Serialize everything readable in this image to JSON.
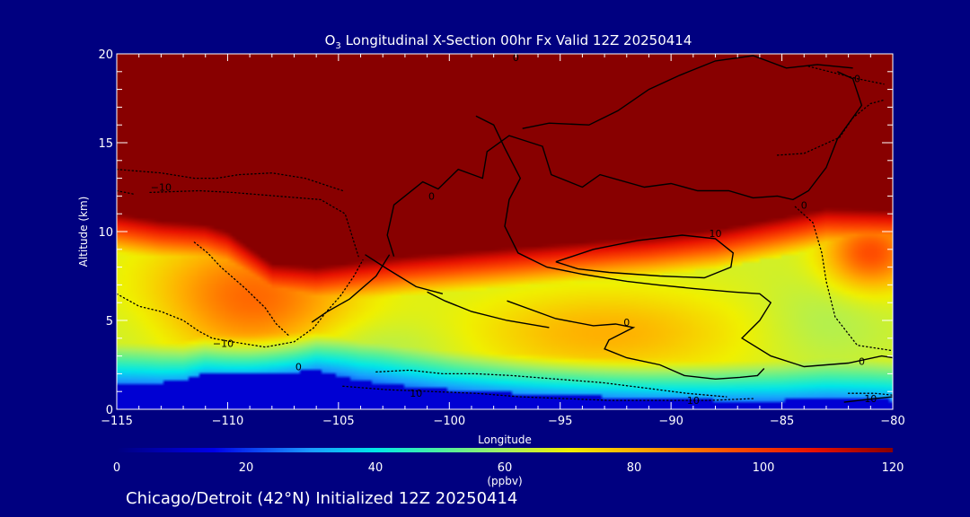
{
  "colors": {
    "background": "#000080",
    "foreground": "#ffffff",
    "contour": "#000000",
    "stratosphere": "#880000",
    "surface": "#0a16a8"
  },
  "chart_data": {
    "type": "heatmap",
    "title_main": "O",
    "title_sub": "3",
    "title_rest": " Longitudinal X-Section 00hr  Fx Valid 12Z 20250414",
    "xlabel": "Longitude",
    "ylabel": "Altitude (km)",
    "xlim": [
      -115,
      -80
    ],
    "ylim": [
      0,
      20
    ],
    "xticks": [
      {
        "v": -115,
        "label": "−115"
      },
      {
        "v": -110,
        "label": "−110"
      },
      {
        "v": -105,
        "label": "−105"
      },
      {
        "v": -100,
        "label": "−100"
      },
      {
        "v": -95,
        "label": "−95"
      },
      {
        "v": -90,
        "label": "−90"
      },
      {
        "v": -85,
        "label": "−85"
      },
      {
        "v": -80,
        "label": "−80"
      }
    ],
    "yticks": [
      {
        "v": 0,
        "label": "0"
      },
      {
        "v": 5,
        "label": "5"
      },
      {
        "v": 10,
        "label": "10"
      },
      {
        "v": 15,
        "label": "15"
      },
      {
        "v": 20,
        "label": "20"
      }
    ],
    "colorbar": {
      "unit": "(ppbv)",
      "range": [
        0,
        120
      ],
      "ticks": [
        {
          "v": 0,
          "label": "0"
        },
        {
          "v": 20,
          "label": "20"
        },
        {
          "v": 40,
          "label": "40"
        },
        {
          "v": 60,
          "label": "60"
        },
        {
          "v": 80,
          "label": "80"
        },
        {
          "v": 100,
          "label": "100"
        },
        {
          "v": 120,
          "label": "120"
        }
      ],
      "stops": [
        {
          "v": 0,
          "color": "#000080"
        },
        {
          "v": 15,
          "color": "#0000e8"
        },
        {
          "v": 30,
          "color": "#1a9cff"
        },
        {
          "v": 40,
          "color": "#00e8e8"
        },
        {
          "v": 50,
          "color": "#4cf0a0"
        },
        {
          "v": 60,
          "color": "#a6f060"
        },
        {
          "v": 70,
          "color": "#f0f000"
        },
        {
          "v": 80,
          "color": "#ffb000"
        },
        {
          "v": 95,
          "color": "#ff5000"
        },
        {
          "v": 108,
          "color": "#e81000"
        },
        {
          "v": 120,
          "color": "#880000"
        }
      ]
    },
    "tropopause": [
      [
        -115,
        11.0
      ],
      [
        -113,
        10.6
      ],
      [
        -111,
        10.4
      ],
      [
        -110,
        10.0
      ],
      [
        -108,
        8.2
      ],
      [
        -106,
        8.0
      ],
      [
        -104,
        8.3
      ],
      [
        -102,
        8.6
      ],
      [
        -100,
        8.8
      ],
      [
        -97,
        9.1
      ],
      [
        -94,
        9.4
      ],
      [
        -91,
        9.7
      ],
      [
        -88,
        10.1
      ],
      [
        -85,
        10.8
      ],
      [
        -83,
        11.3
      ],
      [
        -80,
        11.2
      ]
    ],
    "surface": [
      [
        -115,
        1.5
      ],
      [
        -113,
        1.5
      ],
      [
        -112,
        1.6
      ],
      [
        -111,
        2.0
      ],
      [
        -109,
        2.0
      ],
      [
        -107,
        2.1
      ],
      [
        -106,
        2.2
      ],
      [
        -104,
        1.6
      ],
      [
        -102,
        1.3
      ],
      [
        -100,
        1.1
      ],
      [
        -97,
        0.9
      ],
      [
        -94,
        0.75
      ],
      [
        -91,
        0.6
      ],
      [
        -88,
        0.5
      ],
      [
        -85,
        0.5
      ],
      [
        -83,
        0.6
      ],
      [
        -81,
        0.55
      ],
      [
        -80,
        0.5
      ]
    ],
    "field_features": [
      {
        "lon": -109,
        "alt": 6.2,
        "value": 88,
        "r_lon": 4.5,
        "r_alt": 3.5
      },
      {
        "lon": -93,
        "alt": 4.3,
        "value": 76,
        "r_lon": 6.0,
        "r_alt": 2.4
      },
      {
        "lon": -81,
        "alt": 8.8,
        "value": 92,
        "r_lon": 2.0,
        "r_alt": 2.0
      },
      {
        "lon": -83,
        "alt": 5.0,
        "value": 57,
        "r_lon": 2.8,
        "r_alt": 2.5
      },
      {
        "lon": -113,
        "alt": 4.5,
        "value": 58,
        "r_lon": 3.5,
        "r_alt": 2.5
      },
      {
        "lon": -104,
        "alt": 3.2,
        "value": 55,
        "r_lon": 4.0,
        "r_alt": 2.0
      }
    ],
    "contours": [
      {
        "style": "solid",
        "points": [
          [
            -106.2,
            4.9
          ],
          [
            -105.5,
            5.5
          ],
          [
            -104.5,
            6.2
          ],
          [
            -103.3,
            7.5
          ],
          [
            -102.7,
            8.7
          ]
        ]
      },
      {
        "style": "solid",
        "points": [
          [
            -102.5,
            8.6
          ],
          [
            -102.8,
            9.8
          ],
          [
            -102.5,
            11.5
          ],
          [
            -101.2,
            12.8
          ],
          [
            -100.5,
            12.4
          ],
          [
            -99.6,
            13.5
          ],
          [
            -98.5,
            13.0
          ],
          [
            -98.3,
            14.5
          ],
          [
            -97.3,
            15.4
          ],
          [
            -95.8,
            14.8
          ],
          [
            -95.4,
            13.2
          ],
          [
            -94.0,
            12.5
          ],
          [
            -93.2,
            13.2
          ],
          [
            -91.2,
            12.5
          ],
          [
            -90.0,
            12.7
          ],
          [
            -88.8,
            12.3
          ],
          [
            -87.4,
            12.3
          ],
          [
            -86.3,
            11.9
          ],
          [
            -85.2,
            12.0
          ],
          [
            -84.5,
            11.8
          ],
          [
            -83.8,
            12.3
          ],
          [
            -83.0,
            13.6
          ],
          [
            -82.5,
            15.2
          ],
          [
            -81.4,
            17.1
          ],
          [
            -81.8,
            18.6
          ],
          [
            -82.5,
            19.0
          ]
        ]
      },
      {
        "style": "solid",
        "points": [
          [
            -98.8,
            16.5
          ],
          [
            -98.0,
            16.0
          ],
          [
            -97.5,
            14.7
          ],
          [
            -96.8,
            13.0
          ],
          [
            -97.3,
            11.8
          ],
          [
            -97.5,
            10.3
          ],
          [
            -96.9,
            8.8
          ],
          [
            -95.6,
            8.0
          ],
          [
            -94.0,
            7.6
          ],
          [
            -92.0,
            7.2
          ],
          [
            -90.6,
            7.0
          ],
          [
            -89.0,
            6.8
          ],
          [
            -87.2,
            6.6
          ],
          [
            -86.0,
            6.5
          ],
          [
            -85.5,
            6.0
          ],
          [
            -86.0,
            5.0
          ],
          [
            -86.8,
            4.0
          ],
          [
            -85.5,
            3.0
          ],
          [
            -84.0,
            2.4
          ],
          [
            -82.0,
            2.6
          ],
          [
            -80.5,
            3.0
          ],
          [
            -80.0,
            2.9
          ]
        ]
      },
      {
        "style": "solid",
        "points": [
          [
            -95.2,
            8.3
          ],
          [
            -93.5,
            9.0
          ],
          [
            -91.5,
            9.5
          ],
          [
            -89.5,
            9.8
          ],
          [
            -88.0,
            9.6
          ],
          [
            -87.2,
            8.8
          ],
          [
            -87.3,
            8.0
          ],
          [
            -88.5,
            7.4
          ],
          [
            -90.5,
            7.5
          ],
          [
            -92.8,
            7.7
          ],
          [
            -94.2,
            7.9
          ],
          [
            -95.2,
            8.3
          ]
        ]
      },
      {
        "style": "solid",
        "points": [
          [
            -97.4,
            6.1
          ],
          [
            -95.2,
            5.1
          ],
          [
            -93.5,
            4.7
          ],
          [
            -92.5,
            4.8
          ],
          [
            -91.7,
            4.6
          ],
          [
            -92.8,
            3.9
          ],
          [
            -93.0,
            3.4
          ],
          [
            -92.0,
            2.9
          ],
          [
            -90.5,
            2.5
          ],
          [
            -89.4,
            1.9
          ],
          [
            -88.0,
            1.7
          ],
          [
            -86.9,
            1.8
          ],
          [
            -86.1,
            1.9
          ],
          [
            -85.8,
            2.3
          ]
        ]
      },
      {
        "style": "solid",
        "points": [
          [
            -101.0,
            6.6
          ],
          [
            -100.2,
            6.1
          ],
          [
            -99.0,
            5.5
          ],
          [
            -97.4,
            5.0
          ],
          [
            -95.5,
            4.6
          ]
        ]
      },
      {
        "style": "solid",
        "points": [
          [
            -103.8,
            8.7
          ],
          [
            -102.8,
            7.9
          ],
          [
            -101.5,
            6.9
          ],
          [
            -100.3,
            6.5
          ]
        ]
      },
      {
        "style": "solid",
        "points": [
          [
            -96.7,
            15.8
          ],
          [
            -95.5,
            16.1
          ],
          [
            -93.7,
            16.0
          ],
          [
            -92.4,
            16.8
          ],
          [
            -91.0,
            18.0
          ],
          [
            -89.6,
            18.8
          ],
          [
            -88.0,
            19.6
          ],
          [
            -86.3,
            19.9
          ],
          [
            -84.8,
            19.2
          ],
          [
            -83.4,
            19.4
          ],
          [
            -81.8,
            19.2
          ]
        ]
      },
      {
        "style": "dot",
        "points": [
          [
            -115,
            13.5
          ],
          [
            -113,
            13.3
          ],
          [
            -111.5,
            13.0
          ],
          [
            -110.5,
            13.0
          ],
          [
            -109.5,
            13.2
          ],
          [
            -108,
            13.3
          ],
          [
            -106.5,
            13.0
          ],
          [
            -105.3,
            12.5
          ],
          [
            -104.8,
            12.3
          ]
        ]
      },
      {
        "style": "dot",
        "points": [
          [
            -113.5,
            12.2
          ],
          [
            -111.3,
            12.3
          ],
          [
            -109.8,
            12.2
          ],
          [
            -107.8,
            12.0
          ],
          [
            -105.8,
            11.8
          ],
          [
            -104.7,
            11.0
          ],
          [
            -104.5,
            10.2
          ],
          [
            -104.1,
            8.6
          ]
        ]
      },
      {
        "style": "dot",
        "points": [
          [
            -115,
            6.5
          ],
          [
            -114,
            5.8
          ],
          [
            -113,
            5.5
          ],
          [
            -112,
            5.0
          ],
          [
            -111.3,
            4.4
          ],
          [
            -110.7,
            4.0
          ],
          [
            -109.8,
            3.8
          ],
          [
            -108.3,
            3.5
          ],
          [
            -107.0,
            3.8
          ],
          [
            -106.1,
            4.6
          ],
          [
            -105.6,
            5.4
          ],
          [
            -104.9,
            6.4
          ],
          [
            -104.3,
            7.5
          ],
          [
            -103.9,
            8.4
          ]
        ]
      },
      {
        "style": "dot",
        "points": [
          [
            -111.5,
            9.4
          ],
          [
            -110.9,
            8.8
          ],
          [
            -110.3,
            8.0
          ],
          [
            -109.2,
            6.8
          ],
          [
            -108.3,
            5.7
          ],
          [
            -107.8,
            4.8
          ],
          [
            -107.2,
            4.1
          ]
        ]
      },
      {
        "style": "dot",
        "points": [
          [
            -103.3,
            2.1
          ],
          [
            -101.8,
            2.2
          ],
          [
            -100.3,
            2.0
          ],
          [
            -98.8,
            2.0
          ],
          [
            -97.2,
            1.9
          ],
          [
            -95.2,
            1.7
          ],
          [
            -93.1,
            1.5
          ],
          [
            -91.2,
            1.2
          ],
          [
            -89.3,
            0.9
          ],
          [
            -87.5,
            0.7
          ]
        ]
      },
      {
        "style": "dot",
        "points": [
          [
            -104.8,
            1.3
          ],
          [
            -102.8,
            1.1
          ],
          [
            -100.8,
            1.0
          ],
          [
            -98.8,
            0.9
          ],
          [
            -96.8,
            0.7
          ],
          [
            -94.8,
            0.6
          ],
          [
            -92.8,
            0.5
          ],
          [
            -90.3,
            0.5
          ],
          [
            -88.3,
            0.5
          ],
          [
            -86.3,
            0.6
          ]
        ]
      },
      {
        "style": "dot",
        "points": [
          [
            -115,
            12.3
          ],
          [
            -114.2,
            12.1
          ]
        ]
      },
      {
        "style": "dot",
        "points": [
          [
            -85.2,
            14.3
          ],
          [
            -84.0,
            14.4
          ],
          [
            -82.4,
            15.3
          ],
          [
            -81.8,
            16.4
          ],
          [
            -81.0,
            17.2
          ],
          [
            -80.4,
            17.4
          ]
        ]
      },
      {
        "style": "dot",
        "points": [
          [
            -83.8,
            19.3
          ],
          [
            -81.6,
            18.6
          ],
          [
            -80.4,
            18.3
          ]
        ]
      },
      {
        "style": "dot",
        "points": [
          [
            -84.4,
            11.4
          ],
          [
            -83.6,
            10.5
          ],
          [
            -83.2,
            8.8
          ],
          [
            -83.0,
            7.2
          ],
          [
            -82.6,
            5.2
          ],
          [
            -81.6,
            3.6
          ],
          [
            -80.0,
            3.3
          ]
        ]
      },
      {
        "style": "dot",
        "points": [
          [
            -82.0,
            0.9
          ],
          [
            -80.8,
            0.9
          ],
          [
            -80.0,
            0.8
          ]
        ]
      },
      {
        "style": "solid",
        "points": [
          [
            -82.2,
            0.4
          ],
          [
            -80.8,
            0.6
          ],
          [
            -80.0,
            0.7
          ]
        ]
      }
    ],
    "contour_labels": [
      {
        "lon": -110.2,
        "alt": 3.7,
        "text": "−10"
      },
      {
        "lon": -113.0,
        "alt": 12.5,
        "text": "−10"
      },
      {
        "lon": -106.8,
        "alt": 2.4,
        "text": "0"
      },
      {
        "lon": -97.0,
        "alt": 19.8,
        "text": "0"
      },
      {
        "lon": -100.8,
        "alt": 12.0,
        "text": "0"
      },
      {
        "lon": -88.0,
        "alt": 9.9,
        "text": "10"
      },
      {
        "lon": -92.0,
        "alt": 4.9,
        "text": "0"
      },
      {
        "lon": -84.0,
        "alt": 11.5,
        "text": "0"
      },
      {
        "lon": -81.6,
        "alt": 18.6,
        "text": "0"
      },
      {
        "lon": -81.4,
        "alt": 2.7,
        "text": "0"
      },
      {
        "lon": -101.5,
        "alt": 0.9,
        "text": "10"
      },
      {
        "lon": -89.0,
        "alt": 0.5,
        "text": "10"
      },
      {
        "lon": -81.0,
        "alt": 0.6,
        "text": "10"
      }
    ],
    "footer": "Chicago/Detroit (42°N) Initialized 12Z 20250414"
  }
}
